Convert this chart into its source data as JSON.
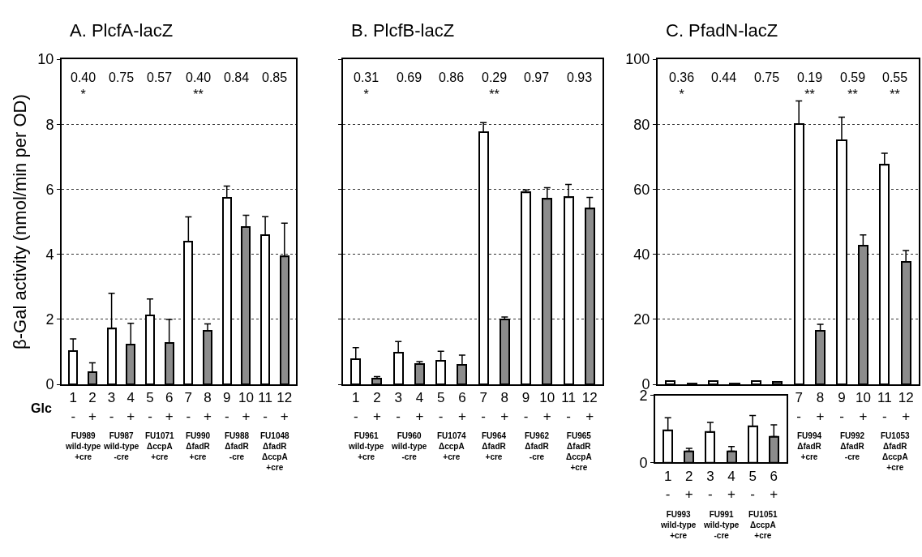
{
  "chart_data": [
    {
      "type": "bar",
      "title": "A. PlcfA-lacZ",
      "ylabel": "β-Gal activity (nmol/min per OD)",
      "categories": [
        "1\n-",
        "2\n+",
        "3\n-",
        "4\n+",
        "5\n-",
        "6\n+",
        "7\n-",
        "8\n+",
        "9\n-",
        "10\n+",
        "11\n-",
        "12\n+"
      ],
      "values": [
        1.03,
        0.38,
        1.71,
        1.23,
        2.12,
        1.28,
        4.39,
        1.64,
        5.74,
        4.84,
        4.6,
        3.93
      ],
      "errors": [
        [
          1.03,
          1.4
        ],
        [
          0.38,
          0.66
        ],
        [
          1.71,
          2.8
        ],
        [
          1.23,
          1.88
        ],
        [
          2.12,
          2.63
        ],
        [
          1.28,
          2.0
        ],
        [
          4.39,
          5.15
        ],
        [
          1.64,
          1.86
        ],
        [
          5.74,
          6.1
        ],
        [
          4.84,
          5.2
        ],
        [
          4.6,
          5.16
        ],
        [
          3.93,
          4.96
        ]
      ],
      "colors": [
        "#ffffff",
        "#8c8c8c",
        "#ffffff",
        "#8c8c8c",
        "#ffffff",
        "#8c8c8c",
        "#ffffff",
        "#8c8c8c",
        "#ffffff",
        "#8c8c8c",
        "#ffffff",
        "#8c8c8c"
      ],
      "ylim": [
        0,
        10
      ],
      "yticks": [
        0,
        2,
        4,
        6,
        8,
        10
      ],
      "grid": "y",
      "annotations": [
        "0.40\n*",
        "0.75",
        "0.57",
        "0.40\n**",
        "0.84",
        "0.85",
        "Glc",
        "FU989\nwild-type\n+cre",
        "FU987\nwild-type\n-cre",
        "FU1071\nΔccpA\n+cre",
        "FU990\nΔfadR\n+cre",
        "FU988\nΔfadR\n-cre",
        "FU1048\nΔfadR\nΔccpA\n+cre"
      ]
    },
    {
      "type": "bar",
      "title": "B. PlcfB-lacZ",
      "categories": [
        "1\n-",
        "2\n+",
        "3\n-",
        "4\n+",
        "5\n-",
        "6\n+",
        "7\n-",
        "8\n+",
        "9\n-",
        "10\n+",
        "11\n-",
        "12\n+"
      ],
      "values": [
        0.78,
        0.18,
        0.97,
        0.62,
        0.72,
        0.6,
        7.75,
        2.0,
        5.9,
        5.7,
        5.75,
        5.4
      ],
      "errors": [
        [
          0.78,
          1.13
        ],
        [
          0.18,
          0.24
        ],
        [
          0.97,
          1.32
        ],
        [
          0.62,
          0.7
        ],
        [
          0.72,
          1.02
        ],
        [
          0.6,
          0.9
        ],
        [
          7.75,
          8.05
        ],
        [
          2.0,
          2.07
        ],
        [
          5.9,
          5.98
        ],
        [
          5.7,
          6.05
        ],
        [
          5.75,
          6.15
        ],
        [
          5.4,
          5.75
        ]
      ],
      "colors": [
        "#ffffff",
        "#8c8c8c",
        "#ffffff",
        "#8c8c8c",
        "#ffffff",
        "#8c8c8c",
        "#ffffff",
        "#8c8c8c",
        "#ffffff",
        "#8c8c8c",
        "#ffffff",
        "#8c8c8c"
      ],
      "ylim": [
        0,
        10
      ],
      "yticks": [
        0,
        2,
        4,
        6,
        8,
        10
      ],
      "grid": "y",
      "tick_labels": "x",
      "annotations": [
        "0.31\n*",
        "0.69",
        "0.86",
        "0.29\n**",
        "0.97",
        "0.93",
        "FU961\nwild-type\n+cre",
        "FU960\nwild-type\n-cre",
        "FU1074\nΔccpA\n+cre",
        "FU964\nΔfadR\n+cre",
        "FU962\nΔfadR\n-cre",
        "FU965\nΔfadR\nΔccpA\n+cre"
      ]
    },
    {
      "type": "bar",
      "title": "C. PfadN-lacZ",
      "categories": [
        null,
        null,
        null,
        null,
        null,
        null,
        "7\n-",
        "8\n+",
        "9\n-",
        "10\n+",
        "11\n-",
        "12\n+"
      ],
      "values": [
        1,
        0.3,
        0.9,
        0.3,
        1.1,
        0.8,
        80,
        16.4,
        75,
        42.6,
        67.5,
        37.6
      ],
      "errors": [
        null,
        null,
        null,
        null,
        null,
        null,
        [
          80,
          87.2
        ],
        [
          16.4,
          18.5
        ],
        [
          75,
          82.2
        ],
        [
          42.6,
          46
        ],
        [
          67.5,
          71.1
        ],
        [
          37.6,
          41.2
        ]
      ],
      "colors": [
        "#ffffff",
        "#8c8c8c",
        "#ffffff",
        "#8c8c8c",
        "#ffffff",
        "#8c8c8c",
        "#ffffff",
        "#8c8c8c",
        "#ffffff",
        "#8c8c8c",
        "#ffffff",
        "#8c8c8c"
      ],
      "ylim": [
        0,
        100
      ],
      "yticks": [
        0,
        20,
        40,
        60,
        80,
        100
      ],
      "grid": "y",
      "annotations": [
        "0.36\n*",
        "0.44",
        "0.75",
        "0.19\n**",
        "0.59\n**",
        "0.55\n**",
        "FU994\nΔfadR\n+cre",
        "FU992\nΔfadR\n-cre",
        "FU1053\nΔfadR\nΔccpA\n+cre"
      ]
    },
    {
      "type": "bar",
      "categories": [
        "1\n-",
        "2\n+",
        "3\n-",
        "4\n+",
        "5\n-",
        "6\n+"
      ],
      "values": [
        0.95,
        0.33,
        0.9,
        0.33,
        1.07,
        0.77
      ],
      "errors": [
        [
          0.95,
          1.33
        ],
        [
          0.33,
          0.42
        ],
        [
          0.9,
          1.19
        ],
        [
          0.33,
          0.47
        ],
        [
          1.07,
          1.4
        ],
        [
          0.77,
          1.12
        ]
      ],
      "colors": [
        "#ffffff",
        "#8c8c8c",
        "#ffffff",
        "#8c8c8c",
        "#ffffff",
        "#8c8c8c"
      ],
      "ylim": [
        0,
        2
      ],
      "yticks": [
        0,
        2
      ],
      "annotations": [
        "FU993\nwild-type\n+cre",
        "FU991\nwild-type\n-cre",
        "FU1051\nΔccpA\n+cre"
      ]
    }
  ]
}
